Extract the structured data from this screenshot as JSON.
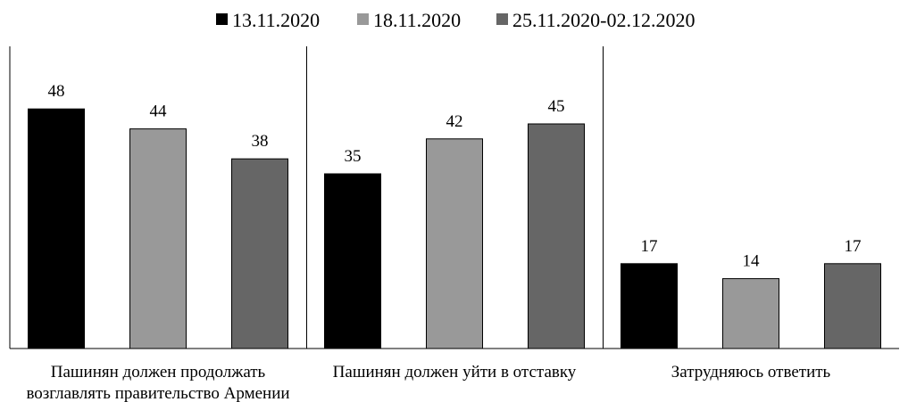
{
  "chart_data": {
    "type": "bar",
    "title": "",
    "xlabel": "",
    "ylabel": "",
    "ylim": [
      0,
      55
    ],
    "grid": false,
    "legend_position": "top",
    "categories": [
      [
        "Пашинян должен продолжать",
        "возглавлять правительство Армении"
      ],
      [
        "Пашинян должен уйти в отставку"
      ],
      [
        "Затрудняюсь ответить"
      ]
    ],
    "series": [
      {
        "name": "13.11.2020",
        "color": "#000000",
        "values": [
          48,
          35,
          17
        ]
      },
      {
        "name": "18.11.2020",
        "color": "#999999",
        "values": [
          44,
          42,
          14
        ]
      },
      {
        "name": "25.11.2020-02.12.2020",
        "color": "#666666",
        "values": [
          38,
          45,
          17
        ]
      }
    ]
  }
}
